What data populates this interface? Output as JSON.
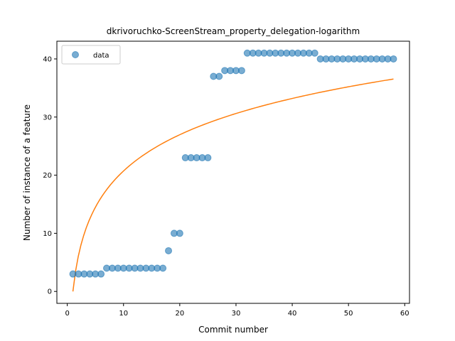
{
  "chart_data": {
    "type": "scatter",
    "title": "dkrivoruchko-ScreenStream_property_delegation-logarithm",
    "xlabel": "Commit number",
    "ylabel": "Number of instance of a feature",
    "xlim": [
      -1.85,
      60.85
    ],
    "ylim": [
      -2.05,
      43.05
    ],
    "xticks": [
      0,
      10,
      20,
      30,
      40,
      50,
      60
    ],
    "yticks": [
      0,
      10,
      20,
      30,
      40
    ],
    "grid": false,
    "legend": {
      "placement": "top-left",
      "entries": [
        "data"
      ]
    },
    "series": [
      {
        "name": "data",
        "kind": "scatter",
        "color": "#1f77b4",
        "x": [
          1,
          2,
          3,
          4,
          5,
          6,
          7,
          8,
          9,
          10,
          11,
          12,
          13,
          14,
          15,
          16,
          17,
          18,
          19,
          20,
          21,
          22,
          23,
          24,
          25,
          26,
          27,
          28,
          29,
          30,
          31,
          32,
          33,
          34,
          35,
          36,
          37,
          38,
          39,
          40,
          41,
          42,
          43,
          44,
          45,
          46,
          47,
          48,
          49,
          50,
          51,
          52,
          53,
          54,
          55,
          56,
          57,
          58
        ],
        "y": [
          3,
          3,
          3,
          3,
          3,
          3,
          4,
          4,
          4,
          4,
          4,
          4,
          4,
          4,
          4,
          4,
          4,
          7,
          10,
          10,
          23,
          23,
          23,
          23,
          23,
          37,
          37,
          38,
          38,
          38,
          38,
          41,
          41,
          41,
          41,
          41,
          41,
          41,
          41,
          41,
          41,
          41,
          41,
          41,
          40,
          40,
          40,
          40,
          40,
          40,
          40,
          40,
          40,
          40,
          40,
          40,
          40,
          40
        ]
      },
      {
        "kind": "line",
        "color": "#ff7f0e",
        "fit": {
          "a": 9.0,
          "b": 0.0
        }
      }
    ]
  }
}
